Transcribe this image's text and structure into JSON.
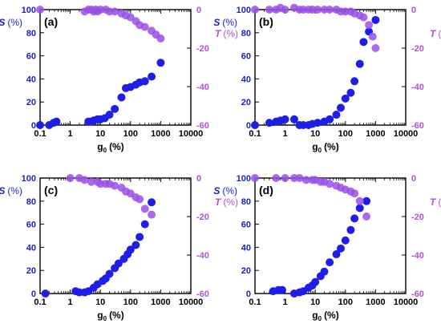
{
  "chart_data": [
    {
      "type": "scatter",
      "panel_label": "(a)",
      "xlabel": "g",
      "xlabel_sub": "0",
      "xlabel_unit": "(%)",
      "y_left_label": "S",
      "y_left_unit": "(%)",
      "y_right_label": "T",
      "y_right_unit": "(%)",
      "x_scale": "log",
      "xlim": [
        0.1,
        10000
      ],
      "ylim_left": [
        0,
        100
      ],
      "ylim_right": [
        -60,
        0
      ],
      "x_ticks": [
        "0.1",
        "1",
        "10",
        "100",
        "1000",
        "10000"
      ],
      "y_left_ticks": [
        "0",
        "20",
        "40",
        "60",
        "80",
        "100"
      ],
      "y_right_ticks": [
        "0",
        "-20",
        "-40",
        "-60"
      ],
      "series": [
        {
          "axis": "left",
          "color": "#1e1ee6",
          "x": [
            0.1,
            0.2,
            0.28,
            0.35,
            4,
            5,
            6,
            8,
            10,
            14,
            20,
            30,
            50,
            70,
            100,
            150,
            200,
            300,
            500,
            1000
          ],
          "y": [
            0,
            0,
            2,
            3,
            3,
            3,
            4,
            5,
            5,
            6,
            9,
            14,
            24,
            32,
            33,
            35,
            37,
            38,
            42,
            54
          ]
        },
        {
          "axis": "right",
          "color": "#9b4fe6",
          "x": [
            0.1,
            3,
            4,
            5,
            6,
            7,
            8,
            10,
            15,
            20,
            30,
            50,
            70,
            100,
            150,
            200,
            300,
            500,
            700,
            1000
          ],
          "y": [
            0,
            -1,
            0,
            0,
            -1,
            0,
            -1,
            0,
            0,
            -1,
            -1,
            -2,
            -3,
            -4,
            -6,
            -8,
            -9,
            -11,
            -13,
            -15
          ]
        }
      ]
    },
    {
      "type": "scatter",
      "panel_label": "(b)",
      "xlabel": "g",
      "xlabel_sub": "0",
      "xlabel_unit": "(%)",
      "y_left_label": "S",
      "y_left_unit": "(%)",
      "y_right_label": "T",
      "y_right_unit": "(%)",
      "x_scale": "log",
      "xlim": [
        0.1,
        10000
      ],
      "ylim_left": [
        0,
        100
      ],
      "ylim_right": [
        -60,
        0
      ],
      "x_ticks": [
        "0.1",
        "1",
        "10",
        "100",
        "1000",
        "10000"
      ],
      "y_left_ticks": [
        "0",
        "20",
        "40",
        "60",
        "80",
        "100"
      ],
      "y_right_ticks": [
        "0",
        "-20",
        "-40",
        "-60"
      ],
      "series": [
        {
          "axis": "left",
          "color": "#1e1ee6",
          "x": [
            0.1,
            0.3,
            0.5,
            0.7,
            1,
            2,
            3,
            4,
            6,
            8,
            12,
            20,
            30,
            50,
            70,
            100,
            150,
            200,
            300,
            400,
            600,
            1000
          ],
          "y": [
            0,
            2,
            3,
            4,
            5,
            5,
            0,
            0,
            0,
            1,
            2,
            3,
            5,
            9,
            15,
            23,
            28,
            38,
            53,
            72,
            81,
            91
          ]
        },
        {
          "axis": "right",
          "color": "#9b4fe6",
          "x": [
            0.1,
            0.3,
            0.5,
            0.7,
            1,
            2,
            3,
            4,
            6,
            8,
            12,
            20,
            30,
            50,
            70,
            100,
            150,
            200,
            300,
            400,
            600,
            800,
            1000
          ],
          "y": [
            0,
            0,
            0,
            1,
            0,
            1,
            0,
            0,
            0,
            0,
            0,
            0,
            0,
            0,
            -1,
            -1,
            -1,
            -2,
            -3,
            -4,
            -8,
            -14,
            -20
          ]
        }
      ]
    },
    {
      "type": "scatter",
      "panel_label": "(c)",
      "xlabel": "g",
      "xlabel_sub": "0",
      "xlabel_unit": "(%)",
      "y_left_label": "S",
      "y_left_unit": "(%)",
      "y_right_label": "T",
      "y_right_unit": "(%)",
      "x_scale": "log",
      "xlim": [
        0.1,
        10000
      ],
      "ylim_left": [
        0,
        100
      ],
      "ylim_right": [
        -60,
        0
      ],
      "x_ticks": [
        "0.1",
        "1",
        "10",
        "100",
        "1000",
        "10000"
      ],
      "y_left_ticks": [
        "0",
        "20",
        "40",
        "60",
        "80",
        "100"
      ],
      "y_right_ticks": [
        "0",
        "-20",
        "-40",
        "-60"
      ],
      "series": [
        {
          "axis": "left",
          "color": "#1e1ee6",
          "x": [
            0.15,
            1.5,
            2,
            3,
            4,
            6,
            8,
            12,
            15,
            20,
            30,
            40,
            60,
            80,
            100,
            150,
            200,
            300,
            500
          ],
          "y": [
            0,
            2,
            1,
            1,
            2,
            5,
            8,
            11,
            13,
            17,
            22,
            26,
            30,
            34,
            38,
            42,
            49,
            60,
            79
          ]
        },
        {
          "axis": "right",
          "color": "#9b4fe6",
          "x": [
            1,
            2,
            3,
            5,
            8,
            10,
            15,
            20,
            30,
            50,
            70,
            100,
            150,
            200,
            300,
            500
          ],
          "y": [
            0,
            0,
            -1,
            -2,
            -2,
            -3,
            -3,
            -3,
            -4,
            -5,
            -7,
            -8,
            -10,
            -11,
            -16,
            -19
          ]
        }
      ]
    },
    {
      "type": "scatter",
      "panel_label": "(d)",
      "xlabel": "g",
      "xlabel_sub": "0",
      "xlabel_unit": "(%)",
      "y_left_label": "S",
      "y_left_unit": "(%)",
      "y_right_label": "T",
      "y_right_unit": "(%)",
      "x_scale": "log",
      "xlim": [
        0.1,
        10000
      ],
      "ylim_left": [
        0,
        100
      ],
      "ylim_right": [
        -60,
        0
      ],
      "x_ticks": [
        "0.1",
        "1",
        "10",
        "100",
        "1000",
        "10000"
      ],
      "y_left_ticks": [
        "0",
        "20",
        "40",
        "60",
        "80",
        "100"
      ],
      "y_right_ticks": [
        "0",
        "-20",
        "-40",
        "-60"
      ],
      "series": [
        {
          "axis": "left",
          "color": "#1e1ee6",
          "x": [
            0.4,
            0.6,
            0.8,
            2,
            3,
            4,
            6,
            8,
            10,
            15,
            20,
            30,
            50,
            70,
            100,
            150,
            200,
            300,
            500
          ],
          "y": [
            2,
            3,
            3,
            0,
            1,
            2,
            5,
            7,
            10,
            15,
            19,
            27,
            34,
            39,
            46,
            55,
            65,
            74,
            80
          ]
        },
        {
          "axis": "right",
          "color": "#9b4fe6",
          "x": [
            0.1,
            0.5,
            1,
            2,
            3,
            5,
            8,
            10,
            15,
            20,
            30,
            50,
            70,
            100,
            150,
            200,
            300,
            500
          ],
          "y": [
            0,
            0,
            0,
            0,
            0,
            -1,
            -1,
            -1,
            -2,
            -2,
            -3,
            -4,
            -5,
            -6,
            -7,
            -8,
            -12,
            -20
          ]
        }
      ]
    }
  ]
}
